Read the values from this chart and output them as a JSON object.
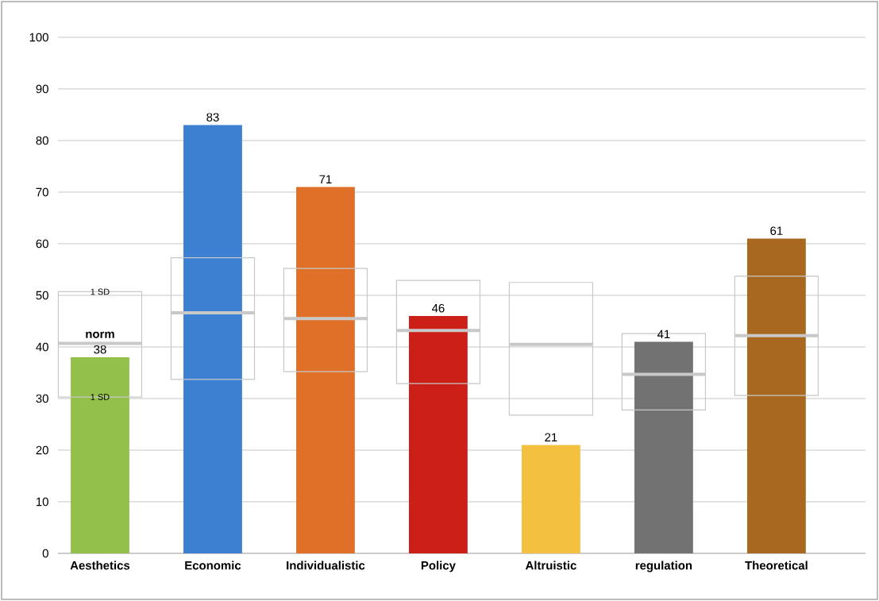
{
  "chart_data": {
    "type": "bar",
    "categories": [
      "Aesthetics",
      "Economic",
      "Individualistic",
      "Policy",
      "Altruistic",
      "regulation",
      "Theoretical"
    ],
    "values": [
      38,
      83,
      71,
      46,
      21,
      41,
      61
    ],
    "colors": [
      "#92c04a",
      "#3d7fd0",
      "#e07028",
      "#cc1f18",
      "#f4c040",
      "#727272",
      "#a86820"
    ],
    "data_labels": true,
    "series": [
      {
        "type": "box",
        "color": "#c8c8c8",
        "boxes": [
          {
            "low": 30.3,
            "q1": 30.3,
            "median": 40.7,
            "q3": 50.7,
            "high": 50.7
          },
          {
            "low": 33.7,
            "q1": 33.7,
            "median": 46.6,
            "q3": 57.3,
            "high": 57.3
          },
          {
            "low": 35.2,
            "q1": 35.2,
            "median": 45.5,
            "q3": 55.2,
            "high": 55.2
          },
          {
            "low": 32.9,
            "q1": 32.9,
            "median": 43.2,
            "q3": 52.9,
            "high": 52.9
          },
          {
            "low": 26.8,
            "q1": 26.8,
            "median": 40.5,
            "q3": 52.5,
            "high": 52.5
          },
          {
            "low": 27.8,
            "q1": 27.8,
            "median": 34.7,
            "q3": 42.6,
            "high": 42.6
          },
          {
            "low": 30.6,
            "q1": 30.6,
            "median": 42.2,
            "q3": 53.7,
            "high": 53.7
          }
        ]
      }
    ],
    "annotations": [
      "1 SD",
      "norm",
      "1 SD"
    ],
    "ylim": [
      0,
      100
    ],
    "yticks": [
      0,
      10,
      20,
      30,
      40,
      50,
      60,
      70,
      80,
      90,
      100
    ],
    "grid": "y"
  }
}
